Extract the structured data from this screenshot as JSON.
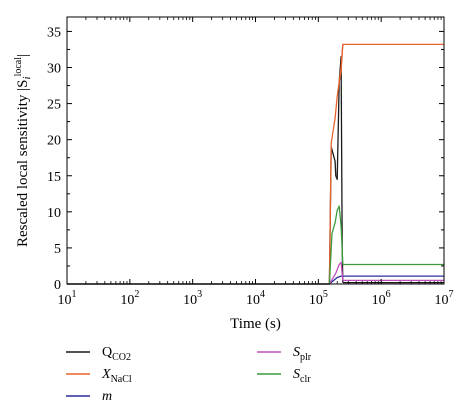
{
  "chart_data": {
    "type": "line",
    "xlabel": "Time (s)",
    "ylabel": {
      "prefix": "Rescaled local sensitivity |S",
      "sub": "i",
      "sup": "local",
      "suffix": "|"
    },
    "xscale": "log",
    "xlim": [
      10,
      10000000
    ],
    "ylim": [
      0,
      37
    ],
    "yticks": [
      0,
      5,
      10,
      15,
      20,
      25,
      30,
      35
    ],
    "xticks": [
      {
        "value": 10,
        "base": "10",
        "exp": "1"
      },
      {
        "value": 100,
        "base": "10",
        "exp": "2"
      },
      {
        "value": 1000,
        "base": "10",
        "exp": "3"
      },
      {
        "value": 10000,
        "base": "10",
        "exp": "4"
      },
      {
        "value": 100000,
        "base": "10",
        "exp": "5"
      },
      {
        "value": 1000000,
        "base": "10",
        "exp": "6"
      },
      {
        "value": 10000000,
        "base": "10",
        "exp": "7"
      }
    ],
    "grid": false,
    "legend_position": "below",
    "series": [
      {
        "name": "Q_CO2",
        "label_main": "Q",
        "label_sub": "CO2",
        "italic": false,
        "color": "#1a1a1a",
        "x": [
          10,
          150000,
          160000,
          185000,
          190000,
          200000,
          215000,
          230000,
          240000,
          245000,
          250000,
          10000000
        ],
        "y": [
          0,
          0,
          19,
          17,
          15,
          14.5,
          28,
          31.5,
          5,
          0.3,
          0.2,
          0.2
        ]
      },
      {
        "name": "X_NaCl",
        "label_main": "X",
        "label_sub": "NaCl",
        "italic": true,
        "color": "#e8622c",
        "x": [
          10,
          150000,
          160000,
          185000,
          200000,
          215000,
          230000,
          245000,
          250000,
          10000000
        ],
        "y": [
          0,
          0,
          19.5,
          23,
          26,
          28,
          29.5,
          33.2,
          33.2,
          33.2
        ],
        "ridge": {
          "x": [
            215000,
            230000,
            245000
          ],
          "y": [
            28,
            30,
            33.2
          ]
        }
      },
      {
        "name": "m",
        "label_main": "m",
        "label_sub": "",
        "italic": true,
        "color": "#2a2f9a",
        "x": [
          10,
          150000,
          170000,
          200000,
          230000,
          250000,
          10000000
        ],
        "y": [
          0,
          0,
          0.4,
          0.9,
          1.1,
          1.1,
          1.1
        ]
      },
      {
        "name": "S_plr",
        "label_main": "S",
        "label_sub": "plr",
        "italic": true,
        "color": "#c050c0",
        "x": [
          10,
          150000,
          190000,
          215000,
          230000,
          245000,
          250000,
          10000000
        ],
        "y": [
          0,
          0,
          1.5,
          2.7,
          3,
          0.6,
          0.5,
          0.5
        ]
      },
      {
        "name": "S_clr",
        "label_main": "S",
        "label_sub": "clr",
        "italic": true,
        "color": "#3d9a3d",
        "x": [
          10,
          150000,
          165000,
          185000,
          200000,
          215000,
          230000,
          245000,
          250000,
          10000000
        ],
        "y": [
          0,
          0,
          7,
          8.5,
          10.2,
          10.8,
          8,
          2.8,
          2.7,
          2.7
        ]
      }
    ]
  }
}
